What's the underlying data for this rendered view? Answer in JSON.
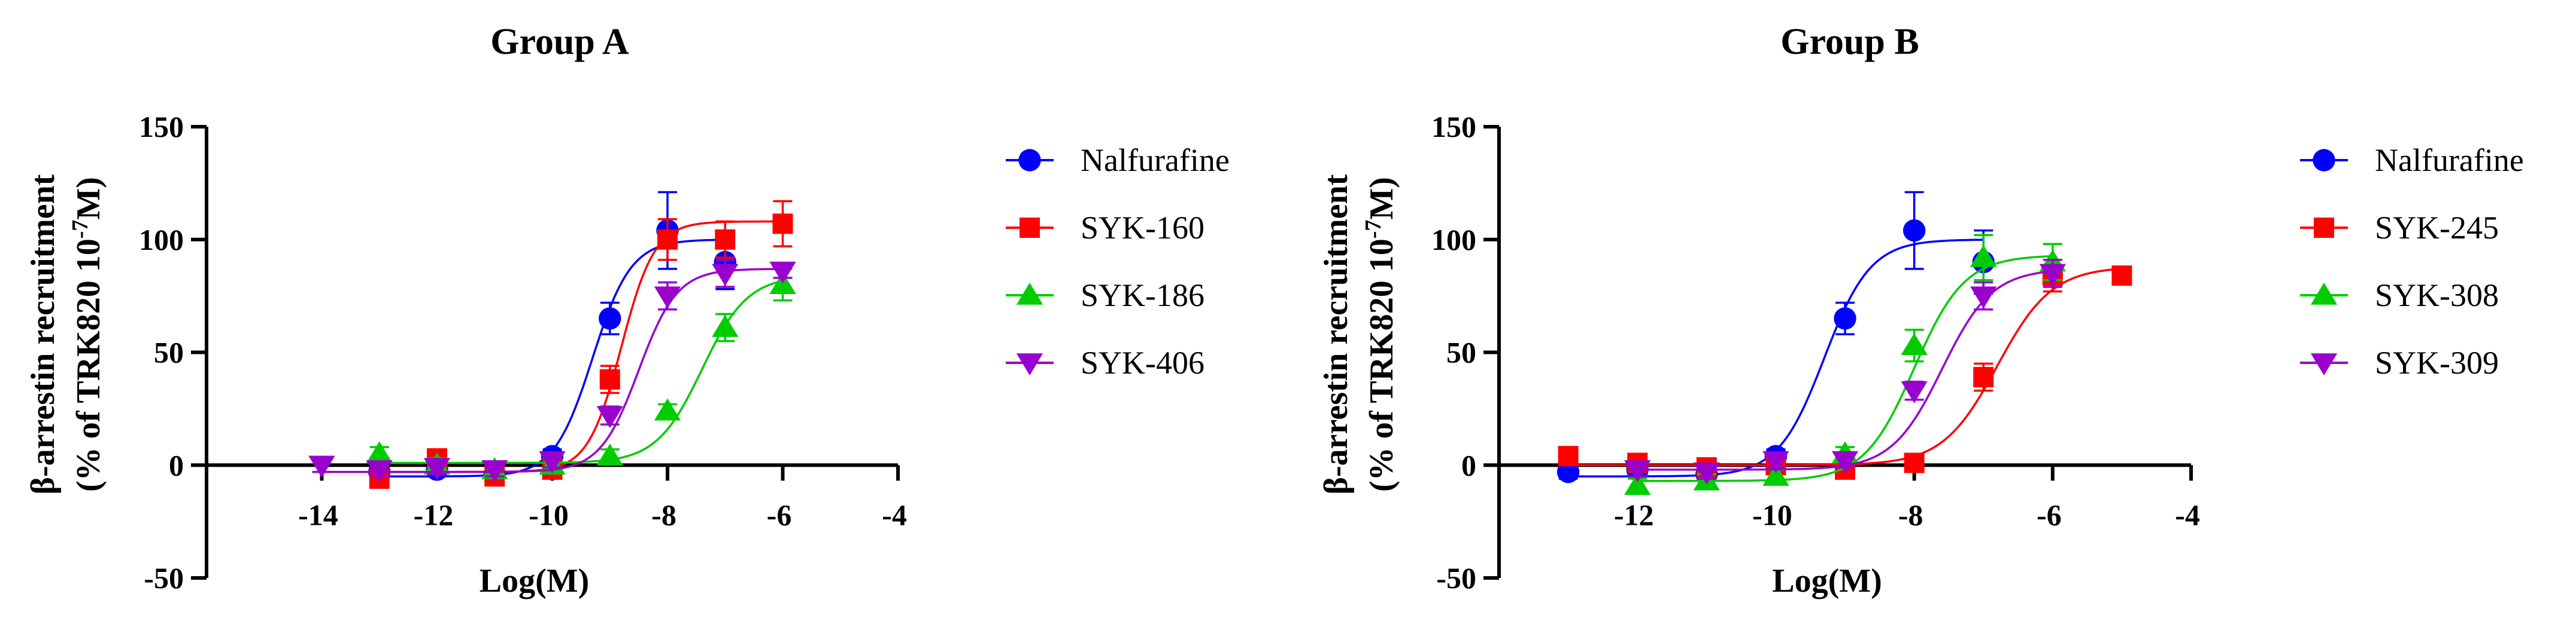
{
  "chart_data": [
    {
      "type": "scatter",
      "title": "Group A",
      "xlabel": "Log(M)",
      "ylabel_line1": "β-arrestin recruitment",
      "ylabel_line2_prefix": "(% of TRK820 10",
      "ylabel_line2_sup": "-7",
      "ylabel_line2_suffix": "M)",
      "xlim": [
        -16,
        -4
      ],
      "ylim": [
        -50,
        150
      ],
      "xticks": [
        -14,
        -12,
        -10,
        -8,
        -6,
        -4
      ],
      "yticks": [
        -50,
        0,
        50,
        100,
        150
      ],
      "legend_position": "right",
      "series": [
        {
          "name": "Nalfurafine",
          "color": "#0000ff",
          "marker": "circle",
          "x": [
            -13,
            -12,
            -11,
            -10,
            -9,
            -8,
            -7
          ],
          "y": [
            -3,
            -2,
            -4,
            4,
            65,
            104,
            90
          ],
          "err": [
            3,
            3,
            3,
            3,
            7,
            17,
            12
          ],
          "fit": {
            "bottom": -5,
            "top": 100,
            "ec50": -9.3,
            "hill": 1.3
          }
        },
        {
          "name": "SYK-160",
          "color": "#ff0000",
          "marker": "square",
          "x": [
            -13,
            -12,
            -11,
            -10,
            -9,
            -8,
            -7,
            -6
          ],
          "y": [
            -6,
            3,
            -5,
            -2,
            38,
            100,
            100,
            107
          ],
          "err": [
            3,
            3,
            3,
            3,
            6,
            9,
            8,
            10
          ],
          "fit": {
            "bottom": -3,
            "top": 108,
            "ec50": -8.8,
            "hill": 1.5
          }
        },
        {
          "name": "SYK-186",
          "color": "#00cc00",
          "marker": "triangle-up",
          "x": [
            -13,
            -12,
            -11,
            -10,
            -9,
            -8,
            -7,
            -6
          ],
          "y": [
            5,
            0,
            -2,
            0,
            4,
            24,
            61,
            80
          ],
          "err": [
            3,
            3,
            3,
            3,
            3,
            3,
            6,
            7
          ],
          "fit": {
            "bottom": 1,
            "top": 84,
            "ec50": -7.4,
            "hill": 1.1
          }
        },
        {
          "name": "SYK-406",
          "color": "#9900cc",
          "marker": "triangle-down",
          "x": [
            -14,
            -13,
            -12,
            -11,
            -10,
            -9,
            -8,
            -7,
            -6
          ],
          "y": [
            0,
            -2,
            -1,
            -2,
            2,
            22,
            75,
            85,
            86
          ],
          "err": [
            3,
            3,
            3,
            3,
            3,
            4,
            6,
            6,
            3
          ],
          "fit": {
            "bottom": -3,
            "top": 87,
            "ec50": -8.5,
            "hill": 1.3
          }
        }
      ]
    },
    {
      "type": "scatter",
      "title": "Group B",
      "xlabel": "Log(M)",
      "ylabel_line1": "β-arrestin recruitment",
      "ylabel_line2_prefix": "(% of TRK820 10",
      "ylabel_line2_sup": "-7",
      "ylabel_line2_suffix": "M)",
      "xlim": [
        -14,
        -4
      ],
      "ylim": [
        -50,
        150
      ],
      "xticks": [
        -12,
        -10,
        -8,
        -6,
        -4
      ],
      "yticks": [
        -50,
        0,
        50,
        100,
        150
      ],
      "legend_position": "right",
      "series": [
        {
          "name": "Nalfurafine",
          "color": "#0000ff",
          "marker": "circle",
          "x": [
            -13,
            -12,
            -11,
            -10,
            -9,
            -8,
            -7
          ],
          "y": [
            -3,
            -2,
            -4,
            4,
            65,
            104,
            90
          ],
          "err": [
            3,
            3,
            3,
            3,
            7,
            17,
            14
          ],
          "fit": {
            "bottom": -5,
            "top": 100,
            "ec50": -9.3,
            "hill": 1.3
          }
        },
        {
          "name": "SYK-245",
          "color": "#ff0000",
          "marker": "square",
          "x": [
            -13,
            -12,
            -11,
            -10,
            -9,
            -8,
            -7,
            -6,
            -5
          ],
          "y": [
            4,
            1,
            -1,
            0,
            -2,
            1,
            39,
            84,
            84
          ],
          "err": [
            3,
            3,
            3,
            3,
            3,
            3,
            6,
            7,
            3
          ],
          "fit": {
            "bottom": 0,
            "top": 88,
            "ec50": -6.8,
            "hill": 1.1
          }
        },
        {
          "name": "SYK-308",
          "color": "#00cc00",
          "marker": "triangle-up",
          "x": [
            -12,
            -11,
            -10,
            -9,
            -8,
            -7,
            -6
          ],
          "y": [
            -9,
            -7,
            -5,
            5,
            53,
            92,
            90
          ],
          "err": [
            3,
            3,
            3,
            3,
            7,
            10,
            8
          ],
          "fit": {
            "bottom": -7,
            "top": 93,
            "ec50": -8.0,
            "hill": 1.2
          }
        },
        {
          "name": "SYK-309",
          "color": "#9900cc",
          "marker": "triangle-down",
          "x": [
            -12,
            -11,
            -10,
            -9,
            -8,
            -7,
            -6
          ],
          "y": [
            -2,
            -3,
            2,
            2,
            33,
            75,
            85
          ],
          "err": [
            3,
            3,
            3,
            3,
            4,
            6,
            6
          ],
          "fit": {
            "bottom": -2,
            "top": 87,
            "ec50": -7.6,
            "hill": 1.2
          }
        }
      ]
    }
  ]
}
